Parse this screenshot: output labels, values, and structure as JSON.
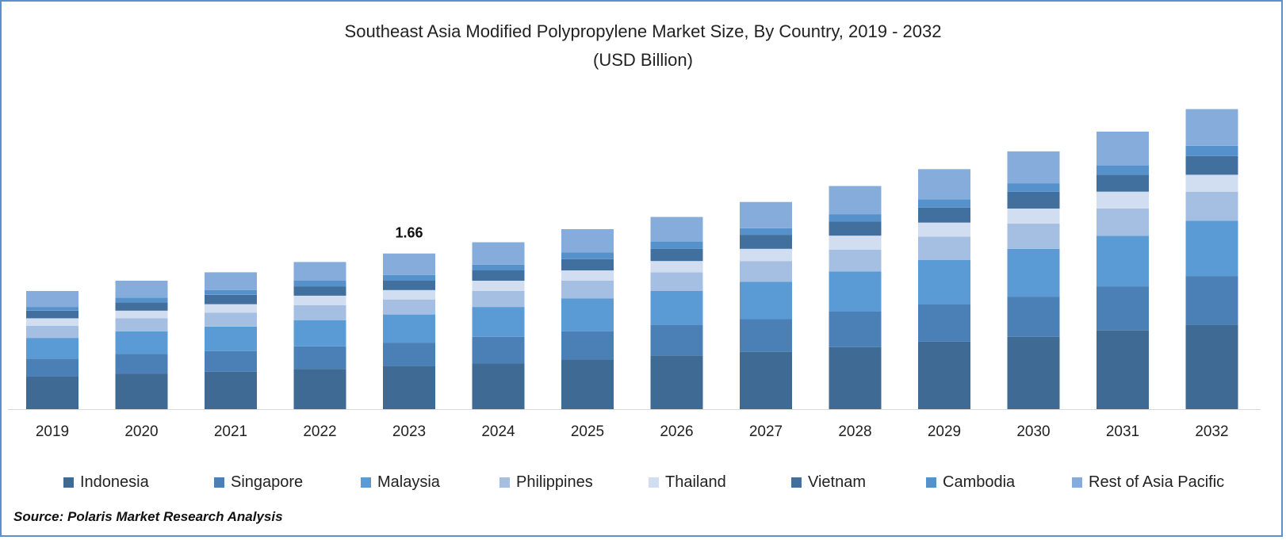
{
  "chart_data": {
    "type": "bar",
    "stacked": true,
    "title": "Southeast Asia Modified Polypropylene Market Size, By Country, 2019 - 2032",
    "subtitle": "(USD Billion)",
    "categories": [
      "2019",
      "2020",
      "2021",
      "2022",
      "2023",
      "2024",
      "2025",
      "2026",
      "2027",
      "2028",
      "2029",
      "2030",
      "2031",
      "2032"
    ],
    "series": [
      {
        "name": "Indonesia",
        "color": "#3e6a93",
        "values": [
          0.35,
          0.38,
          0.4,
          0.43,
          0.46,
          0.49,
          0.53,
          0.57,
          0.61,
          0.66,
          0.72,
          0.77,
          0.84,
          0.9
        ]
      },
      {
        "name": "Singapore",
        "color": "#4a80b5",
        "values": [
          0.19,
          0.21,
          0.22,
          0.24,
          0.25,
          0.28,
          0.3,
          0.33,
          0.35,
          0.38,
          0.4,
          0.43,
          0.47,
          0.52
        ]
      },
      {
        "name": "Malaysia",
        "color": "#5b9bd5",
        "values": [
          0.22,
          0.24,
          0.26,
          0.28,
          0.3,
          0.32,
          0.35,
          0.36,
          0.4,
          0.43,
          0.47,
          0.51,
          0.54,
          0.59
        ]
      },
      {
        "name": "Philippines",
        "color": "#a5bfe3",
        "values": [
          0.13,
          0.14,
          0.15,
          0.16,
          0.16,
          0.17,
          0.19,
          0.2,
          0.22,
          0.23,
          0.25,
          0.27,
          0.29,
          0.31
        ]
      },
      {
        "name": "Thailand",
        "color": "#d1ddf0",
        "values": [
          0.08,
          0.08,
          0.09,
          0.1,
          0.1,
          0.11,
          0.11,
          0.12,
          0.13,
          0.15,
          0.15,
          0.16,
          0.18,
          0.18
        ]
      },
      {
        "name": "Vietnam",
        "color": "#416f9e",
        "values": [
          0.08,
          0.09,
          0.1,
          0.1,
          0.1,
          0.11,
          0.12,
          0.13,
          0.15,
          0.15,
          0.16,
          0.18,
          0.18,
          0.2
        ]
      },
      {
        "name": "Cambodia",
        "color": "#5592cc",
        "values": [
          0.04,
          0.05,
          0.05,
          0.06,
          0.06,
          0.06,
          0.07,
          0.08,
          0.07,
          0.08,
          0.09,
          0.09,
          0.1,
          0.11
        ]
      },
      {
        "name": "Rest of Asia Pacific",
        "color": "#86acdc",
        "values": [
          0.17,
          0.18,
          0.19,
          0.2,
          0.23,
          0.24,
          0.25,
          0.26,
          0.28,
          0.3,
          0.32,
          0.34,
          0.36,
          0.39
        ]
      }
    ],
    "data_labels": [
      {
        "category": "2023",
        "text": "1.66"
      }
    ],
    "ylim": [
      0,
      3.5
    ],
    "grid": false,
    "legend": "bottom"
  },
  "source": "Source: Polaris Market Research Analysis"
}
